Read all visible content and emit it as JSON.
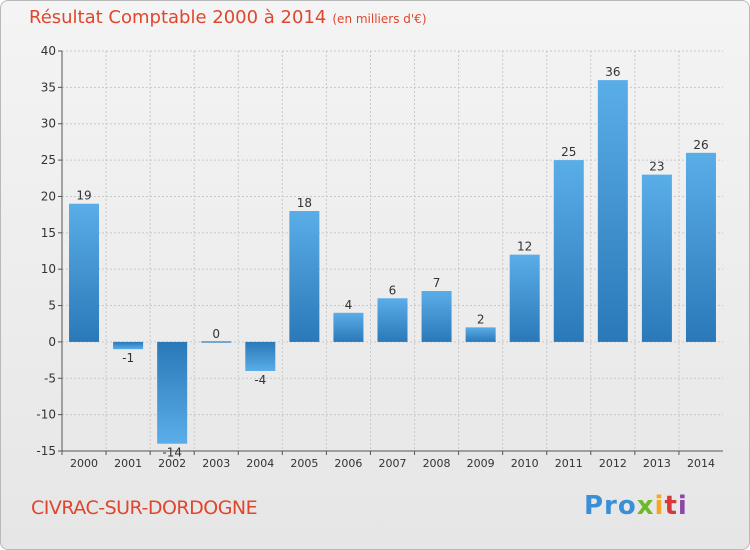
{
  "header": {
    "title": "Résultat Comptable 2000 à 2014",
    "subtitle": "(en milliers d'€)"
  },
  "footer": {
    "commune": "CIVRAC-SUR-DORDOGNE",
    "brand": [
      "Pro",
      "x",
      "i",
      "t",
      "i"
    ]
  },
  "colors": {
    "accent": "#e0462e",
    "bar_light": "#5aaee8",
    "bar_dark": "#2a78b8",
    "grid": "#c8c8c8"
  },
  "chart_data": {
    "type": "bar",
    "title": "Résultat Comptable 2000 à 2014",
    "subtitle": "(en milliers d'€)",
    "xlabel": "",
    "ylabel": "",
    "categories": [
      "2000",
      "2001",
      "2002",
      "2003",
      "2004",
      "2005",
      "2006",
      "2007",
      "2008",
      "2009",
      "2010",
      "2011",
      "2012",
      "2013",
      "2014"
    ],
    "values": [
      19,
      -1,
      -14,
      0,
      -4,
      18,
      4,
      6,
      7,
      2,
      12,
      25,
      36,
      23,
      26
    ],
    "ylim": [
      -15,
      40
    ],
    "yticks": [
      -15,
      -10,
      -5,
      0,
      5,
      10,
      15,
      20,
      25,
      30,
      35,
      40
    ],
    "grid": true,
    "legend": "none"
  }
}
